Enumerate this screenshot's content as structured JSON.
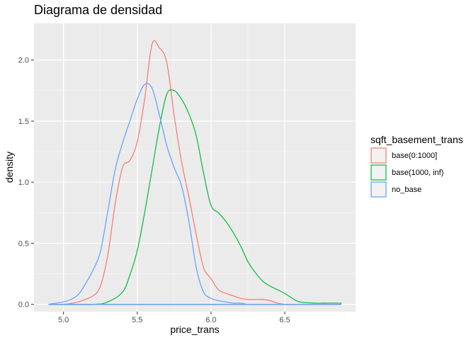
{
  "chart_data": {
    "type": "area",
    "title": "Diagrama de densidad",
    "xlabel": "price_trans",
    "ylabel": "density",
    "xlim": [
      4.8,
      6.98
    ],
    "ylim": [
      -0.06,
      2.3
    ],
    "x_ticks": [
      5.0,
      5.5,
      6.0,
      6.5
    ],
    "x_tick_labels": [
      "5.0",
      "5.5",
      "6.0",
      "6.5"
    ],
    "y_ticks": [
      0.0,
      0.5,
      1.0,
      1.5,
      2.0
    ],
    "y_tick_labels": [
      "0.0",
      "0.5",
      "1.0",
      "1.5",
      "2.0"
    ],
    "grid": true,
    "legend": {
      "title": "sqft_basement_trans",
      "position": "right"
    },
    "series": [
      {
        "name": "base(0:1000]",
        "color": "#F8766D",
        "x": [
          4.9,
          5.0,
          5.1,
          5.2,
          5.25,
          5.3,
          5.35,
          5.4,
          5.45,
          5.5,
          5.55,
          5.6,
          5.65,
          5.7,
          5.75,
          5.8,
          5.85,
          5.9,
          5.95,
          6.0,
          6.05,
          6.1,
          6.15,
          6.2,
          6.25,
          6.3,
          6.35,
          6.4,
          6.45,
          6.5,
          6.6,
          6.88
        ],
        "y": [
          0.0,
          0.0,
          0.02,
          0.07,
          0.15,
          0.4,
          0.82,
          1.12,
          1.18,
          1.33,
          1.68,
          2.13,
          2.1,
          1.98,
          1.55,
          1.17,
          0.88,
          0.57,
          0.3,
          0.21,
          0.12,
          0.09,
          0.07,
          0.05,
          0.04,
          0.04,
          0.04,
          0.03,
          0.01,
          0.0,
          0.0,
          0.0
        ]
      },
      {
        "name": "base(1000, inf)",
        "color": "#00BA38",
        "x": [
          4.9,
          5.2,
          5.3,
          5.4,
          5.45,
          5.5,
          5.55,
          5.6,
          5.65,
          5.7,
          5.75,
          5.8,
          5.85,
          5.9,
          5.95,
          6.0,
          6.05,
          6.1,
          6.15,
          6.2,
          6.25,
          6.3,
          6.35,
          6.4,
          6.45,
          6.5,
          6.55,
          6.6,
          6.7,
          6.8,
          6.88
        ],
        "y": [
          0.0,
          0.0,
          0.02,
          0.1,
          0.24,
          0.44,
          0.75,
          1.1,
          1.45,
          1.72,
          1.75,
          1.68,
          1.56,
          1.38,
          1.07,
          0.81,
          0.75,
          0.68,
          0.59,
          0.48,
          0.35,
          0.26,
          0.19,
          0.15,
          0.12,
          0.09,
          0.05,
          0.02,
          0.01,
          0.01,
          0.01
        ]
      },
      {
        "name": "no_base",
        "color": "#619CFF",
        "x": [
          4.9,
          5.0,
          5.05,
          5.1,
          5.15,
          5.2,
          5.25,
          5.3,
          5.35,
          5.4,
          5.45,
          5.5,
          5.55,
          5.6,
          5.65,
          5.7,
          5.75,
          5.8,
          5.85,
          5.9,
          5.95,
          6.0,
          6.05,
          6.1,
          6.15,
          6.2,
          6.25,
          6.3,
          6.35,
          6.4,
          6.5,
          6.88
        ],
        "y": [
          0.0,
          0.02,
          0.04,
          0.08,
          0.17,
          0.28,
          0.43,
          0.76,
          1.1,
          1.32,
          1.5,
          1.68,
          1.8,
          1.77,
          1.55,
          1.3,
          1.12,
          0.97,
          0.68,
          0.3,
          0.1,
          0.05,
          0.03,
          0.02,
          0.01,
          0.01,
          0.0,
          0.0,
          0.0,
          0.0,
          0.0,
          0.0
        ]
      }
    ]
  }
}
